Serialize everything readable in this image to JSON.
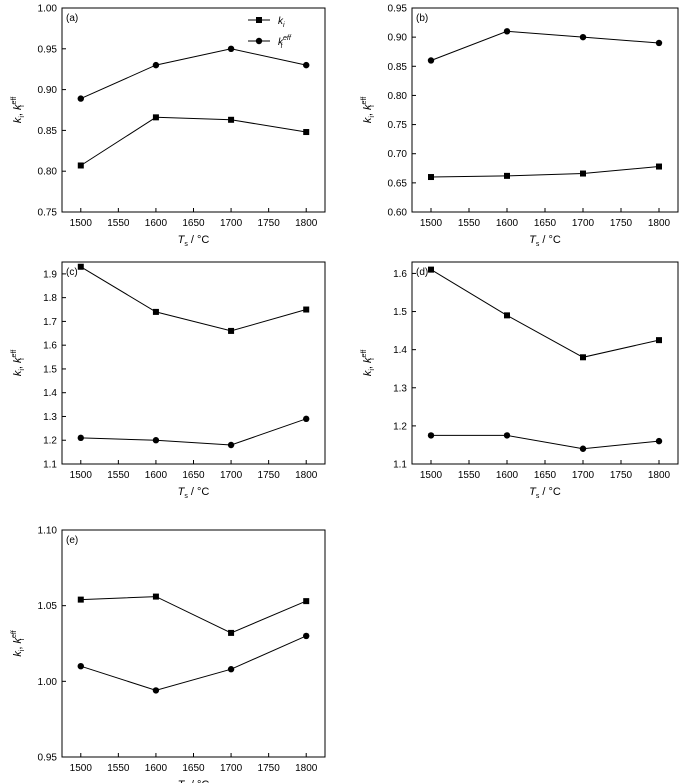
{
  "legend": {
    "series_ki": "k",
    "series_ki_sub": "i",
    "series_keff": "k",
    "series_keff_sup": "eff",
    "series_keff_sub": "i"
  },
  "axis_text": {
    "y_label_main": "k",
    "y_label_sub": "i",
    "y_label_sep": ", ",
    "y_label_main2": "k",
    "y_label_sup2": "eff",
    "y_label_sub2": "i",
    "x_label_main": "T",
    "x_label_sub": "s",
    "x_label_unit": " / °C"
  },
  "chart_data": [
    {
      "type": "line",
      "panel_label": "(a)",
      "x": [
        1500,
        1600,
        1700,
        1800
      ],
      "xlim": [
        1475,
        1825
      ],
      "xticks": [
        1500,
        1550,
        1600,
        1650,
        1700,
        1750,
        1800
      ],
      "ylim": [
        0.75,
        1.0
      ],
      "yticks": [
        0.75,
        0.8,
        0.85,
        0.9,
        0.95,
        1.0
      ],
      "ydecimals": 2,
      "legend": "top-center",
      "series": [
        {
          "marker": "square",
          "values": [
            0.807,
            0.866,
            0.863,
            0.848
          ]
        },
        {
          "marker": "circle",
          "values": [
            0.889,
            0.93,
            0.95,
            0.93
          ]
        }
      ]
    },
    {
      "type": "line",
      "panel_label": "(b)",
      "x": [
        1500,
        1600,
        1700,
        1800
      ],
      "xlim": [
        1475,
        1825
      ],
      "xticks": [
        1500,
        1550,
        1600,
        1650,
        1700,
        1750,
        1800
      ],
      "ylim": [
        0.6,
        0.95
      ],
      "yticks": [
        0.6,
        0.65,
        0.7,
        0.75,
        0.8,
        0.85,
        0.9,
        0.95
      ],
      "ydecimals": 2,
      "series": [
        {
          "marker": "square",
          "values": [
            0.66,
            0.662,
            0.666,
            0.678
          ]
        },
        {
          "marker": "circle",
          "values": [
            0.86,
            0.91,
            0.9,
            0.89
          ]
        }
      ]
    },
    {
      "type": "line",
      "panel_label": "(c)",
      "x": [
        1500,
        1600,
        1700,
        1800
      ],
      "xlim": [
        1475,
        1825
      ],
      "xticks": [
        1500,
        1550,
        1600,
        1650,
        1700,
        1750,
        1800
      ],
      "ylim": [
        1.1,
        1.95
      ],
      "yticks": [
        1.1,
        1.2,
        1.3,
        1.4,
        1.5,
        1.6,
        1.7,
        1.8,
        1.9
      ],
      "ydecimals": 1,
      "series": [
        {
          "marker": "square",
          "values": [
            1.93,
            1.74,
            1.66,
            1.75
          ]
        },
        {
          "marker": "circle",
          "values": [
            1.21,
            1.2,
            1.18,
            1.29
          ]
        }
      ]
    },
    {
      "type": "line",
      "panel_label": "(d)",
      "x": [
        1500,
        1600,
        1700,
        1800
      ],
      "xlim": [
        1475,
        1825
      ],
      "xticks": [
        1500,
        1550,
        1600,
        1650,
        1700,
        1750,
        1800
      ],
      "ylim": [
        1.1,
        1.63
      ],
      "yticks": [
        1.1,
        1.2,
        1.3,
        1.4,
        1.5,
        1.6
      ],
      "ydecimals": 1,
      "series": [
        {
          "marker": "square",
          "values": [
            1.61,
            1.49,
            1.38,
            1.425
          ]
        },
        {
          "marker": "circle",
          "values": [
            1.175,
            1.175,
            1.14,
            1.16
          ]
        }
      ]
    },
    {
      "type": "line",
      "panel_label": "(e)",
      "x": [
        1500,
        1600,
        1700,
        1800
      ],
      "xlim": [
        1475,
        1825
      ],
      "xticks": [
        1500,
        1550,
        1600,
        1650,
        1700,
        1750,
        1800
      ],
      "ylim": [
        0.95,
        1.1
      ],
      "yticks": [
        0.95,
        1.0,
        1.05,
        1.1
      ],
      "ydecimals": 2,
      "series": [
        {
          "marker": "square",
          "values": [
            1.054,
            1.056,
            1.032,
            1.053
          ]
        },
        {
          "marker": "circle",
          "values": [
            1.01,
            0.994,
            1.008,
            1.03
          ]
        }
      ]
    }
  ]
}
